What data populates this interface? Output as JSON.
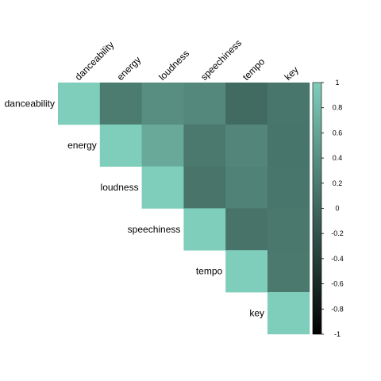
{
  "chart_data": {
    "type": "heatmap",
    "variables": [
      "danceability",
      "energy",
      "loudness",
      "speechiness",
      "tempo",
      "key"
    ],
    "matrix": [
      [
        1.0,
        0.2,
        0.38,
        0.33,
        0.03,
        0.15
      ],
      [
        0.2,
        1.0,
        0.65,
        0.18,
        0.3,
        0.14
      ],
      [
        0.38,
        0.65,
        1.0,
        0.13,
        0.27,
        0.15
      ],
      [
        0.33,
        0.18,
        0.13,
        1.0,
        0.12,
        0.17
      ],
      [
        0.03,
        0.3,
        0.27,
        0.12,
        1.0,
        0.18
      ],
      [
        0.15,
        0.14,
        0.15,
        0.17,
        0.18,
        1.0
      ]
    ],
    "triangle": "upper",
    "colorbar": {
      "ticks": [
        "1",
        "0.8",
        "0.6",
        "0.4",
        "0.2",
        "0",
        "-0.2",
        "-0.4",
        "-0.6",
        "-0.8",
        "-1"
      ],
      "range": [
        -1,
        1
      ],
      "colors": {
        "low": "#000000",
        "high": "#7fcdbb"
      }
    },
    "title": "",
    "xlabel": "",
    "ylabel": ""
  }
}
